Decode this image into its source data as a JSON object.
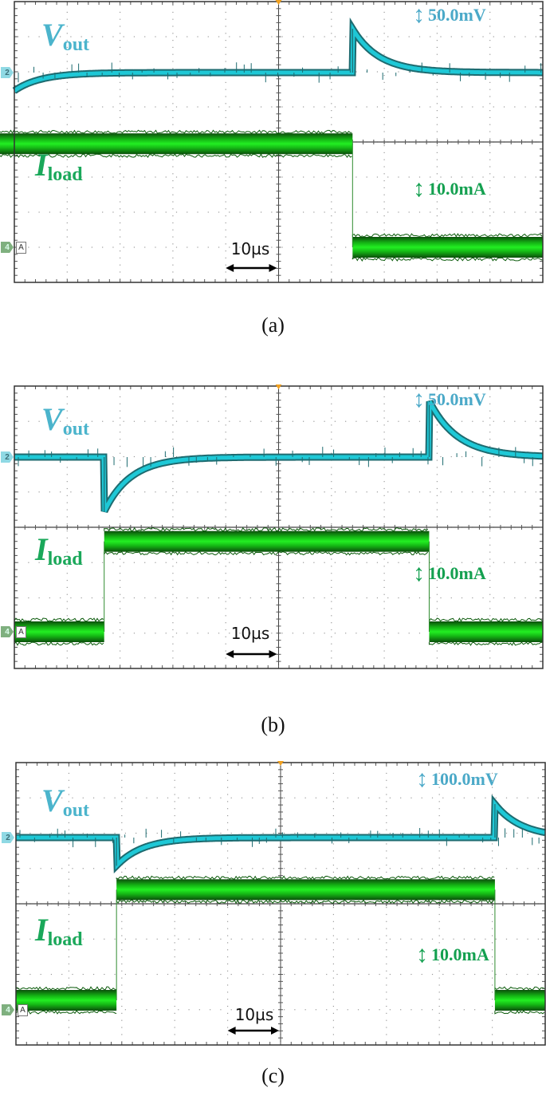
{
  "chart_data": [
    {
      "type": "line",
      "panel": "a",
      "caption": "(a)",
      "title": "",
      "series": [
        {
          "name": "Vout",
          "label_main": "V",
          "label_sub": "out",
          "color": "#1ec8d6",
          "scale_per_div": "50.0mV",
          "events": [
            {
              "time_div": -5.4,
              "type": "undershoot",
              "peak_div": -1.15,
              "recovery_div": 1.5
            },
            {
              "time_div": 1.4,
              "type": "overshoot",
              "peak_div": 1.25,
              "recovery_div": 1.5
            }
          ]
        },
        {
          "name": "Iload",
          "label_main": "I",
          "label_sub": "load",
          "color": "#12d012",
          "scale_per_div": "10.0mA",
          "low_level_div": -2.4,
          "high_level_div": -0.05,
          "step_up_time_div": -5.4,
          "step_down_time_div": 1.4
        }
      ],
      "time_scale": "10µs",
      "x_divisions": 10,
      "y_divisions": 8,
      "grid": true
    },
    {
      "type": "line",
      "panel": "b",
      "caption": "(b)",
      "series": [
        {
          "name": "Vout",
          "label_main": "V",
          "label_sub": "out",
          "color": "#1ec8d6",
          "scale_per_div": "50.0mV",
          "events": [
            {
              "time_div": -3.3,
              "type": "undershoot",
              "peak_div": -1.55,
              "recovery_div": 1.5
            },
            {
              "time_div": 2.85,
              "type": "overshoot",
              "peak_div": 1.6,
              "recovery_div": 1.6
            }
          ]
        },
        {
          "name": "Iload",
          "label_main": "I",
          "label_sub": "load",
          "color": "#12d012",
          "scale_per_div": "10.0mA",
          "low_level_div": -3.25,
          "high_level_div": -0.4,
          "step_up_time_div": -3.3,
          "step_down_time_div": 2.85
        }
      ],
      "time_scale": "10µs",
      "x_divisions": 10,
      "y_divisions": 8,
      "grid": true
    },
    {
      "type": "line",
      "panel": "c",
      "caption": "(c)",
      "series": [
        {
          "name": "Vout",
          "label_main": "V",
          "label_sub": "out",
          "color": "#1ec8d6",
          "scale_per_div": "100.0mV",
          "events": [
            {
              "time_div": -3.1,
              "type": "undershoot",
              "peak_div": -0.8,
              "recovery_div": 1.5
            },
            {
              "time_div": 4.05,
              "type": "overshoot",
              "peak_div": 0.95,
              "recovery_div": 1.5
            }
          ]
        },
        {
          "name": "Iload",
          "label_main": "I",
          "label_sub": "load",
          "color": "#12d012",
          "scale_per_div": "10.0mA",
          "low_level_div": -3.25,
          "high_level_div": 0.4,
          "step_up_time_div": -3.1,
          "step_down_time_div": 4.05
        }
      ],
      "time_scale": "10µs",
      "x_divisions": 10,
      "y_divisions": 8,
      "grid": true
    }
  ],
  "panels": [
    {
      "id": "a",
      "caption": "(a)",
      "vout_scale": "50.0mV",
      "iload_scale": "10.0mA",
      "time_scale": "10µs",
      "vout_label": "V",
      "vout_sub": "out",
      "iload_label": "I",
      "iload_sub": "load",
      "ch2_marker": "2",
      "ch4_marker": "4",
      "chan_a": "A"
    },
    {
      "id": "b",
      "caption": "(b)",
      "vout_scale": "50.0mV",
      "iload_scale": "10.0mA",
      "time_scale": "10µs",
      "vout_label": "V",
      "vout_sub": "out",
      "iload_label": "I",
      "iload_sub": "load",
      "ch2_marker": "2",
      "ch4_marker": "4",
      "chan_a": "A"
    },
    {
      "id": "c",
      "caption": "(c)",
      "vout_scale": "100.0mV",
      "iload_scale": "10.0mA",
      "time_scale": "10µs",
      "vout_label": "V",
      "vout_sub": "out",
      "iload_label": "I",
      "iload_sub": "load",
      "ch2_marker": "2",
      "ch4_marker": "4",
      "chan_a": "A"
    }
  ],
  "colors": {
    "vout_trace": "#1ec8d6",
    "vout_edge": "#1d6b70",
    "iload_trace": "#12d012",
    "iload_edge": "#0a5a0a",
    "vout_label": "#4bb4cc",
    "iload_label": "#1aa85a",
    "grid": "#9a9a9a",
    "frame": "#333333",
    "trigger": "#f0a020"
  }
}
